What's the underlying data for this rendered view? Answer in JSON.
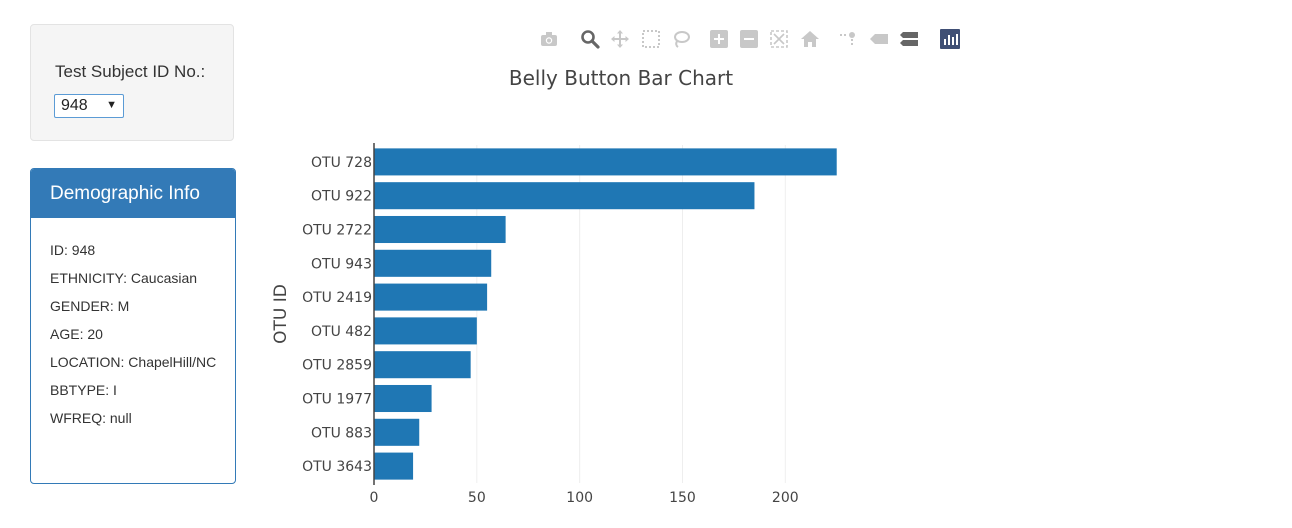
{
  "selector": {
    "label": "Test Subject ID No.:",
    "value": "948"
  },
  "panel": {
    "title": "Demographic Info",
    "lines": [
      "ID: 948",
      "ETHNICITY: Caucasian",
      "GENDER: M",
      "AGE: 20",
      "LOCATION: ChapelHill/NC",
      "BBTYPE: I",
      "WFREQ: null"
    ]
  },
  "modebar": {
    "icons": [
      "camera-icon",
      "zoom-icon",
      "pan-icon",
      "box-select-icon",
      "lasso-select-icon",
      "zoom-in-icon",
      "zoom-out-icon",
      "autoscale-icon",
      "reset-axes-icon",
      "spike-lines-icon",
      "hover-closest-icon",
      "hover-compare-icon",
      "plotly-logo-icon"
    ],
    "inactive_color": "#c8c8c8",
    "active_color": "#666666",
    "logo_color": "#3f4f75"
  },
  "chart_data": {
    "type": "bar",
    "orientation": "horizontal",
    "title": "Belly Button Bar Chart",
    "xlabel": "",
    "ylabel": "OTU ID",
    "categories": [
      "OTU 728",
      "OTU 922",
      "OTU 2722",
      "OTU 943",
      "OTU 2419",
      "OTU 482",
      "OTU 2859",
      "OTU 1977",
      "OTU 883",
      "OTU 3643"
    ],
    "values": [
      225,
      185,
      64,
      57,
      55,
      50,
      47,
      28,
      22,
      19
    ],
    "xlim": [
      0,
      230
    ],
    "xticks": [
      0,
      50,
      100,
      150,
      200
    ],
    "grid": true,
    "bar_color": "#1f77b4"
  }
}
